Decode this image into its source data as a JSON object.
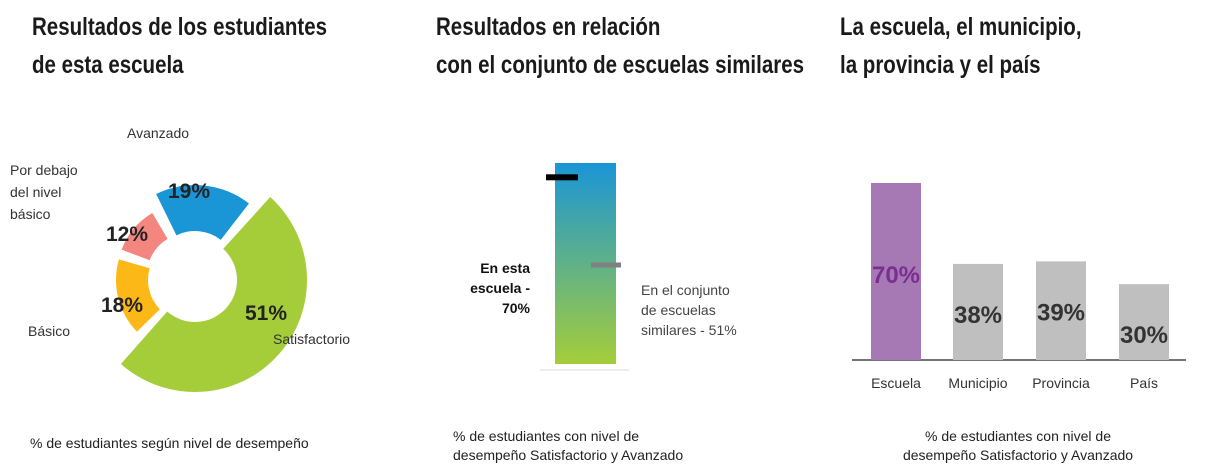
{
  "panels": {
    "p1": {
      "title_line1": "Resultados de los estudiantes",
      "title_line2": "de esta escuela",
      "caption": "% de estudiantes según nivel de desempeño"
    },
    "p2": {
      "title_line1": "Resultados en relación",
      "title_line2": "con el conjunto de escuelas similares",
      "caption_line1": "% de estudiantes con nivel de",
      "caption_line2": "desempeño Satisfactorio y Avanzado",
      "school_label_lines": [
        "En esta",
        "escuela  -",
        "70%"
      ],
      "group_label_lines": [
        "En el conjunto",
        "de escuelas",
        "similares - 51%"
      ]
    },
    "p3": {
      "title_line1": "La escuela, el municipio,",
      "title_line2": "la provincia y el país",
      "caption_line1": "% de estudiantes con nivel de",
      "caption_line2": "desempeño Satisfactorio y Avanzado"
    }
  },
  "chart_data": [
    {
      "type": "pie",
      "title": "Resultados de los estudiantes de esta escuela",
      "categories": [
        "Satisfactorio",
        "Básico",
        "Por debajo del nivel básico",
        "Avanzado"
      ],
      "values": [
        51,
        18,
        12,
        19
      ],
      "value_labels": [
        "51%",
        "18%",
        "12%",
        "19%"
      ],
      "category_labels": [
        [
          "Satisfactorio"
        ],
        [
          "Básico"
        ],
        [
          "Por debajo",
          "del nivel",
          "básico"
        ],
        [
          "Avanzado"
        ]
      ],
      "colors": [
        "#a5cd3a",
        "#fbb817",
        "#f48680",
        "#1a95d6"
      ],
      "donut": true
    },
    {
      "type": "bar",
      "subtype": "gradient-scale",
      "title": "Resultados en relación con el conjunto de escuelas similares",
      "ylim": [
        0,
        100
      ],
      "markers": [
        {
          "name": "En esta escuela",
          "value": 70,
          "color": "#000000"
        },
        {
          "name": "En el conjunto de escuelas similares",
          "value": 51,
          "color": "#808080"
        }
      ],
      "gradient_colors": [
        "#1a95d6",
        "#a5cd3a"
      ]
    },
    {
      "type": "bar",
      "title": "La escuela, el municipio, la provincia y el país",
      "categories": [
        "Escuela",
        "Municipio",
        "Provincia",
        "País"
      ],
      "values": [
        70,
        38,
        39,
        30
      ],
      "value_labels": [
        "70%",
        "38%",
        "39%",
        "30%"
      ],
      "bar_colors": [
        "#a679b5",
        "#bfbfbf",
        "#bfbfbf",
        "#bfbfbf"
      ],
      "value_label_colors": [
        "#7a2e91",
        "#333333",
        "#333333",
        "#333333"
      ],
      "ylim": [
        0,
        100
      ]
    }
  ]
}
